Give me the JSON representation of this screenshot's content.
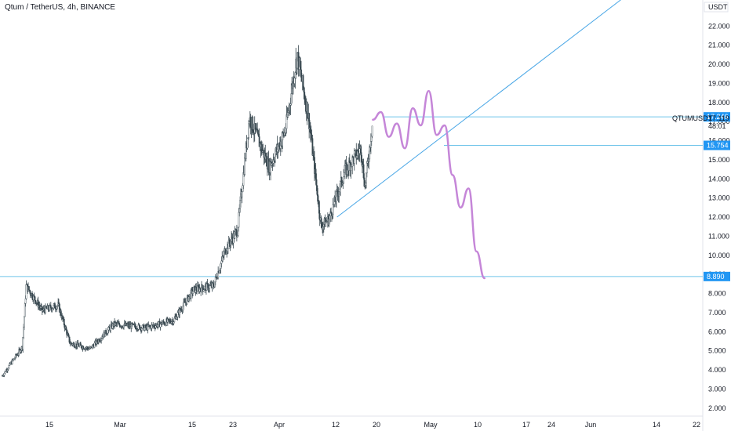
{
  "header": {
    "title": "Qtum / TetherUS, 4h, BINANCE"
  },
  "colors": {
    "up": "#ffffff",
    "down": "#37474f",
    "wick": "#37474f",
    "hline": "#6fc4ea",
    "trendline": "#4aa7e6",
    "badge": "#2196f3",
    "projection": "#c586d8",
    "axis_line": "#e0e3eb"
  },
  "chart_data": {
    "type": "candlestick",
    "symbol": "QTUMUSDT",
    "y_unit": "USDT",
    "ylim": [
      1.5,
      23.2
    ],
    "y_ticks": [
      "2.000",
      "3.000",
      "4.000",
      "5.000",
      "6.000",
      "7.000",
      "8.000",
      "9.000",
      "10.000",
      "11.000",
      "12.000",
      "13.000",
      "14.000",
      "15.000",
      "16.000",
      "17.000",
      "18.000",
      "19.000",
      "20.000",
      "21.000",
      "22.000"
    ],
    "x_ticks": [
      "15",
      "Mar",
      "15",
      "23",
      "Apr",
      "12",
      "20",
      "May",
      "10",
      "17",
      "24",
      "Jun",
      "14",
      "22"
    ],
    "price_levels": [
      {
        "value": 17.246,
        "label": "17.246"
      },
      {
        "value": 15.754,
        "label": "15.754"
      },
      {
        "value": 8.89,
        "label": "8.890"
      }
    ],
    "current_price": {
      "symbol_label": "QTUMUSDT",
      "price_label": "17.119",
      "countdown": "48:01"
    },
    "key_points": [
      {
        "day": 0,
        "close": 3.7
      },
      {
        "day": 5,
        "close": 5.2
      },
      {
        "day": 6,
        "close": 8.4
      },
      {
        "day": 10,
        "close": 7.1
      },
      {
        "day": 14,
        "close": 7.4
      },
      {
        "day": 17,
        "close": 5.4
      },
      {
        "day": 22,
        "close": 5.1
      },
      {
        "day": 28,
        "close": 6.4
      },
      {
        "day": 36,
        "close": 6.2
      },
      {
        "day": 43,
        "close": 6.6
      },
      {
        "day": 48,
        "close": 8.2
      },
      {
        "day": 53,
        "close": 8.4
      },
      {
        "day": 56,
        "close": 10.3
      },
      {
        "day": 59,
        "close": 11.3
      },
      {
        "day": 62,
        "close": 17.2
      },
      {
        "day": 67,
        "close": 14.6
      },
      {
        "day": 71,
        "close": 16.5
      },
      {
        "day": 74,
        "close": 20.5
      },
      {
        "day": 77,
        "close": 17.0
      },
      {
        "day": 80,
        "close": 11.5
      },
      {
        "day": 82,
        "close": 11.9
      },
      {
        "day": 86,
        "close": 14.4
      },
      {
        "day": 90,
        "close": 15.6
      },
      {
        "day": 91,
        "close": 13.6
      },
      {
        "day": 93,
        "close": 17.1
      }
    ],
    "projection": [
      {
        "day": 93,
        "value": 17.1
      },
      {
        "day": 95,
        "value": 17.5
      },
      {
        "day": 97,
        "value": 16.2
      },
      {
        "day": 99,
        "value": 16.9
      },
      {
        "day": 101,
        "value": 15.6
      },
      {
        "day": 103,
        "value": 17.7
      },
      {
        "day": 105,
        "value": 16.8
      },
      {
        "day": 107,
        "value": 18.6
      },
      {
        "day": 109,
        "value": 16.3
      },
      {
        "day": 111,
        "value": 16.8
      },
      {
        "day": 113,
        "value": 14.2
      },
      {
        "day": 115,
        "value": 12.5
      },
      {
        "day": 117,
        "value": 13.5
      },
      {
        "day": 119,
        "value": 10.2
      },
      {
        "day": 121,
        "value": 8.8
      }
    ],
    "trendline": {
      "start": {
        "day": 84,
        "value": 12.0
      },
      "end": {
        "day": 156,
        "value": 23.5
      }
    }
  }
}
